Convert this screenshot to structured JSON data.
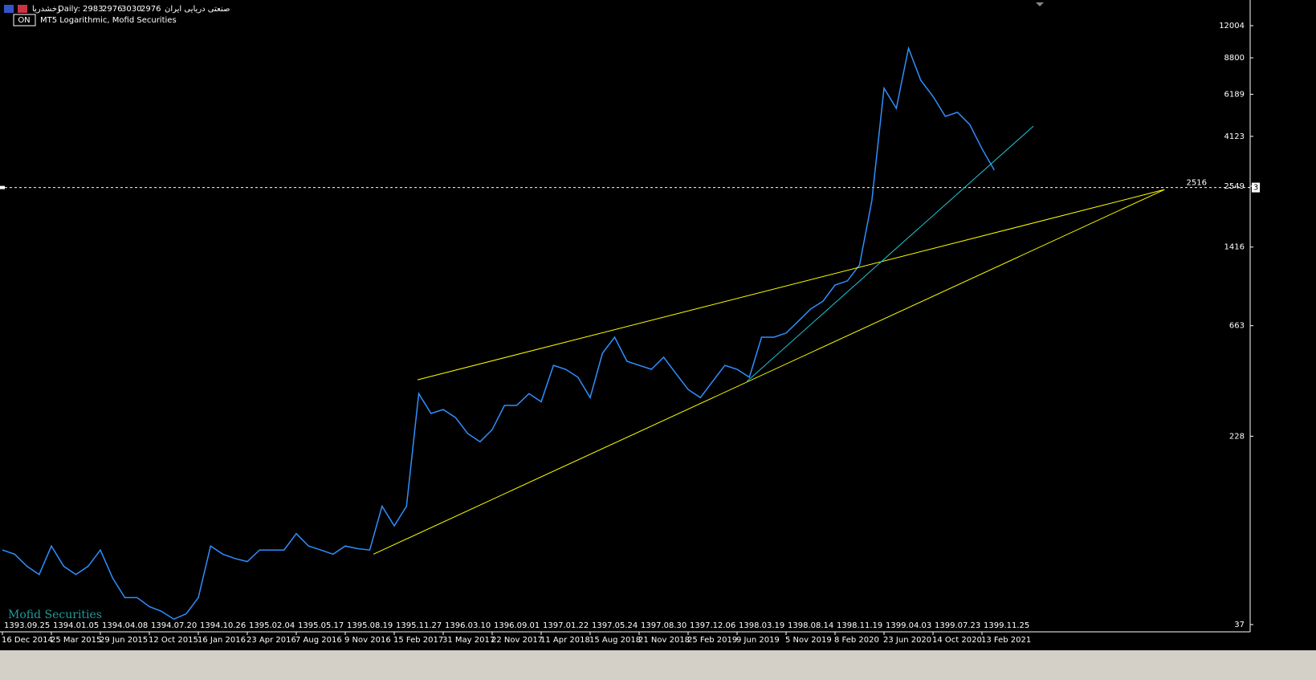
{
  "chart_data": {
    "type": "line",
    "header": {
      "symbol": "رخشدریا",
      "timeframe": "Daily:",
      "ohlc": [
        2983,
        2976,
        3030,
        2976
      ],
      "name": "صنعتی دریایی ایران",
      "subtitle": "MT5 Logarithmic, Mofid Securities",
      "button": "ON"
    },
    "watermark": "Mofid Securities",
    "log_scale": true,
    "ylim": [
      34.5,
      15380
    ],
    "yticks": [
      37,
      228,
      663,
      1416,
      2549,
      4123,
      6189,
      8800,
      12004
    ],
    "categories": [
      "1393.09.25",
      null,
      null,
      null,
      "1394.01.05",
      null,
      null,
      null,
      "1394.04.08",
      null,
      null,
      null,
      "1394.07.20",
      null,
      null,
      null,
      "1394.10.26",
      null,
      null,
      null,
      "1395.02.04",
      null,
      null,
      null,
      "1395.05.17",
      null,
      null,
      null,
      "1395.08.19",
      null,
      null,
      null,
      "1395.11.27",
      null,
      null,
      null,
      "1396.03.10",
      null,
      null,
      null,
      "1396.09.01",
      null,
      null,
      null,
      "1397.01.22",
      null,
      null,
      null,
      "1397.05.24",
      null,
      null,
      null,
      "1397.08.30",
      null,
      null,
      null,
      "1397.12.06",
      null,
      null,
      null,
      "1398.03.19",
      null,
      null,
      null,
      "1398.08.14",
      null,
      null,
      null,
      "1398.11.19",
      null,
      null,
      null,
      "1399.04.03",
      null,
      null,
      null,
      "1399.07.23",
      null,
      null,
      null,
      "1399.11.25",
      null,
      null,
      null
    ],
    "categories_gregorian": [
      "16 Dec 2014",
      null,
      null,
      null,
      "25 Mar 2015",
      null,
      null,
      null,
      "29 Jun 2015",
      null,
      null,
      null,
      "12 Oct 2015",
      null,
      null,
      null,
      "16 Jan 2016",
      null,
      null,
      null,
      "23 Apr 2016",
      null,
      null,
      null,
      "7 Aug 2016",
      null,
      null,
      null,
      "9 Nov 2016",
      null,
      null,
      null,
      "15 Feb 2017",
      null,
      null,
      null,
      "31 May 2017",
      null,
      null,
      null,
      "22 Nov 2017",
      null,
      null,
      null,
      "11 Apr 2018",
      null,
      null,
      null,
      "15 Aug 2018",
      null,
      null,
      null,
      "21 Nov 2018",
      null,
      null,
      null,
      "25 Feb 2019",
      null,
      null,
      null,
      "9 Jun 2019",
      null,
      null,
      null,
      "5 Nov 2019",
      null,
      null,
      null,
      "8 Feb 2020",
      null,
      null,
      null,
      "23 Jun 2020",
      null,
      null,
      null,
      "14 Oct 2020",
      null,
      null,
      null,
      "13 Feb 2021",
      null,
      null,
      null
    ],
    "series": [
      {
        "name": "Close",
        "color": "#2f8fff",
        "values": [
          76,
          73,
          65,
          60,
          79,
          65,
          60,
          65,
          76,
          58,
          48,
          48,
          44,
          42,
          39,
          41,
          48,
          79,
          73,
          70,
          68,
          76,
          76,
          76,
          89,
          79,
          76,
          73,
          79,
          77,
          76,
          116,
          96,
          116,
          344,
          284,
          295,
          273,
          234,
          216,
          243,
          307,
          307,
          344,
          318,
          452,
          435,
          403,
          331,
          508,
          593,
          470,
          452,
          435,
          489,
          418,
          358,
          331,
          387,
          452,
          435,
          403,
          593,
          593,
          617,
          692,
          778,
          839,
          982,
          1021,
          1191,
          2213,
          6561,
          5400,
          9660,
          7080,
          6070,
          5000,
          5200,
          4620,
          3660,
          2976,
          null,
          null
        ]
      }
    ],
    "trendlines": [
      {
        "color": "#ffff00",
        "x": [
          33.9,
          94.9
        ],
        "values": [
          393,
          2466
        ]
      },
      {
        "color": "#ffff00",
        "x": [
          30.3,
          94.9
        ],
        "values": [
          73,
          2466
        ]
      },
      {
        "color": "#1ec8d8",
        "x": [
          60.8,
          84.2
        ],
        "values": [
          387,
          4550
        ]
      }
    ],
    "price_line": {
      "value": 2516,
      "label": "2516",
      "tag": "3"
    }
  }
}
